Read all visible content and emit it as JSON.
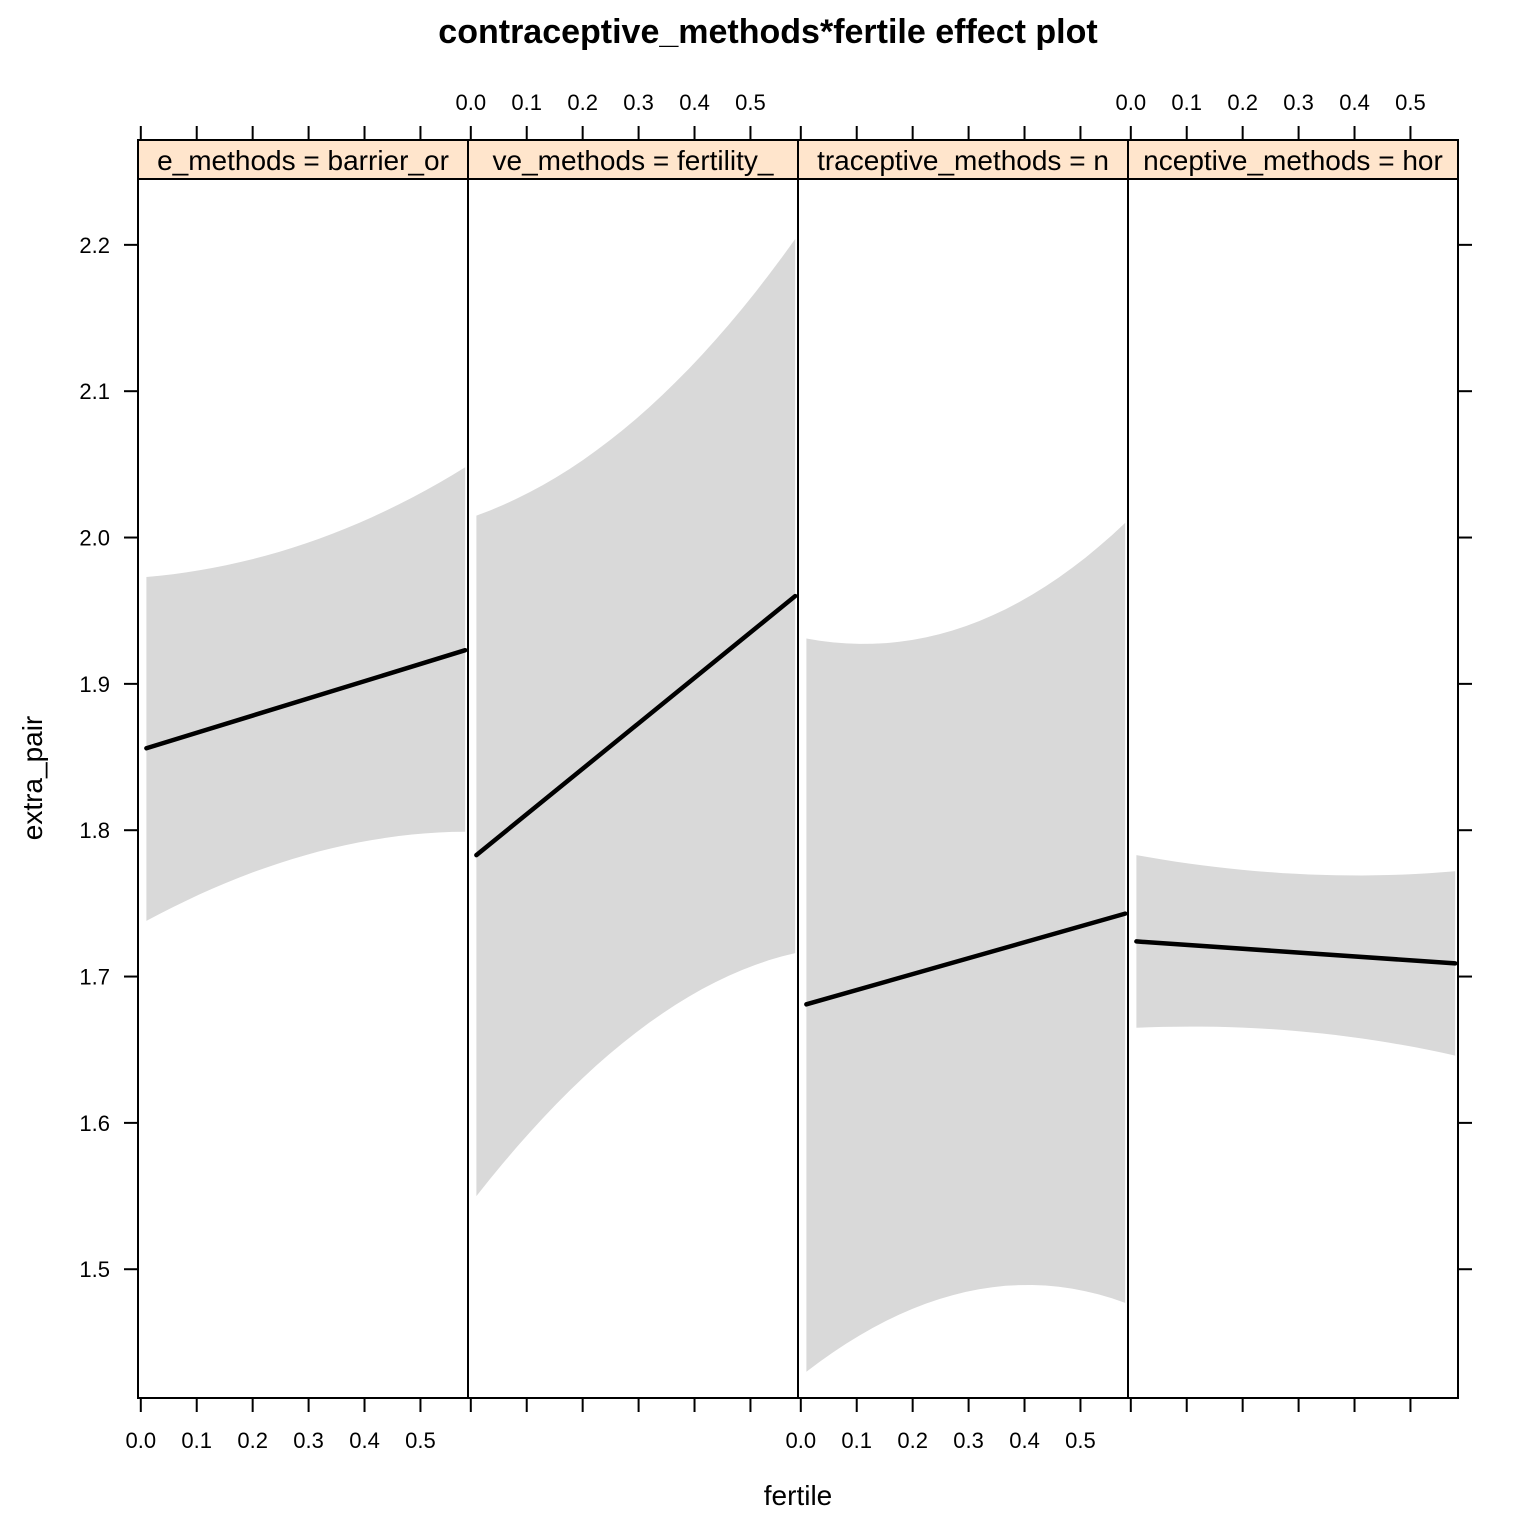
{
  "chart_data": {
    "type": "line",
    "title": "contraceptive_methods*fertile effect plot",
    "xlabel": "fertile",
    "ylabel": "extra_pair",
    "xlim": [
      -0.005,
      0.585
    ],
    "ylim": [
      1.412,
      2.245
    ],
    "x_ticks": [
      "0.0",
      "0.1",
      "0.2",
      "0.3",
      "0.4",
      "0.5"
    ],
    "y_ticks": [
      "1.5",
      "1.6",
      "1.7",
      "1.8",
      "1.9",
      "2.0",
      "2.1",
      "2.2"
    ],
    "strip_color": "#ffe5cc",
    "band_color": "#d9d9d9",
    "panels": [
      {
        "strip_label": "e_methods = barrier_or",
        "x": [
          0.01,
          0.58
        ],
        "fit": [
          1.856,
          1.923
        ],
        "lower": [
          1.738,
          1.799
        ],
        "upper": [
          1.973,
          2.048
        ]
      },
      {
        "strip_label": "ve_methods = fertility_",
        "x": [
          0.01,
          0.58
        ],
        "fit": [
          1.783,
          1.96
        ],
        "lower": [
          1.55,
          1.716
        ],
        "upper": [
          2.015,
          2.204
        ]
      },
      {
        "strip_label": "traceptive_methods = n",
        "x": [
          0.01,
          0.58
        ],
        "fit": [
          1.681,
          1.743
        ],
        "lower": [
          1.43,
          1.477
        ],
        "upper": [
          1.931,
          2.01
        ]
      },
      {
        "strip_label": "nceptive_methods = hor",
        "x": [
          0.01,
          0.58
        ],
        "fit": [
          1.724,
          1.709
        ],
        "lower": [
          1.665,
          1.646
        ],
        "upper": [
          1.783,
          1.772
        ]
      }
    ]
  }
}
